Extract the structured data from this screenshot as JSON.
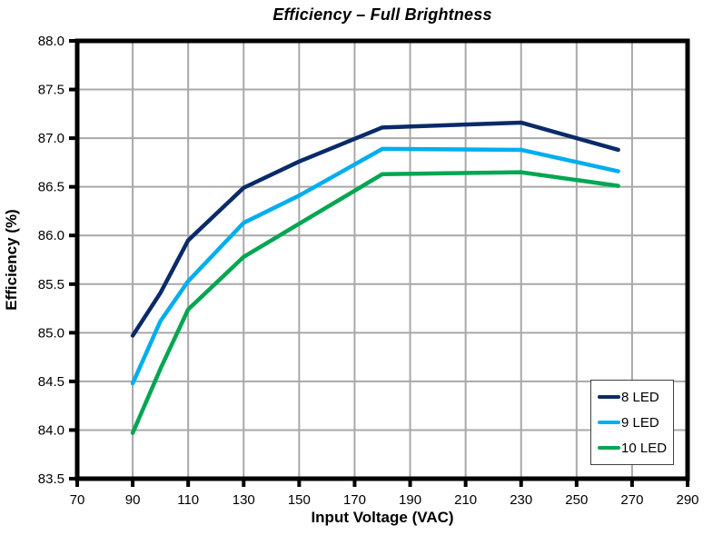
{
  "chart_data": {
    "type": "line",
    "title": "Efficiency – Full Brightness",
    "xlabel": "Input Voltage (VAC)",
    "ylabel": "Efficiency (%)",
    "xlim": [
      70,
      290
    ],
    "ylim": [
      83.5,
      88.0
    ],
    "grid": true,
    "legend_position": "lower right",
    "x_ticks": [
      "70",
      "90",
      "110",
      "130",
      "150",
      "170",
      "190",
      "210",
      "230",
      "250",
      "270",
      "290"
    ],
    "y_ticks": [
      "83.5",
      "84.0",
      "84.5",
      "85.0",
      "85.5",
      "86.0",
      "86.5",
      "87.0",
      "87.5",
      "88.0"
    ],
    "x": [
      90,
      100,
      110,
      130,
      150,
      180,
      230,
      265
    ],
    "series": [
      {
        "name": "8 LED",
        "color": "#0a2a68",
        "values": [
          84.97,
          85.41,
          85.95,
          86.49,
          86.76,
          87.11,
          87.16,
          86.88
        ]
      },
      {
        "name": "9 LED",
        "color": "#00aeef",
        "values": [
          84.48,
          85.12,
          85.53,
          86.13,
          86.41,
          86.89,
          86.88,
          86.66
        ]
      },
      {
        "name": "10 LED",
        "color": "#00a651",
        "values": [
          83.97,
          84.63,
          85.24,
          85.78,
          86.12,
          86.63,
          86.65,
          86.51
        ]
      }
    ],
    "colors": {
      "background": "#ffffff",
      "frame": "#000000",
      "grid": "#a8a8a8",
      "tick": "#000000",
      "text": "#000000",
      "legend_border": "#404040"
    }
  }
}
